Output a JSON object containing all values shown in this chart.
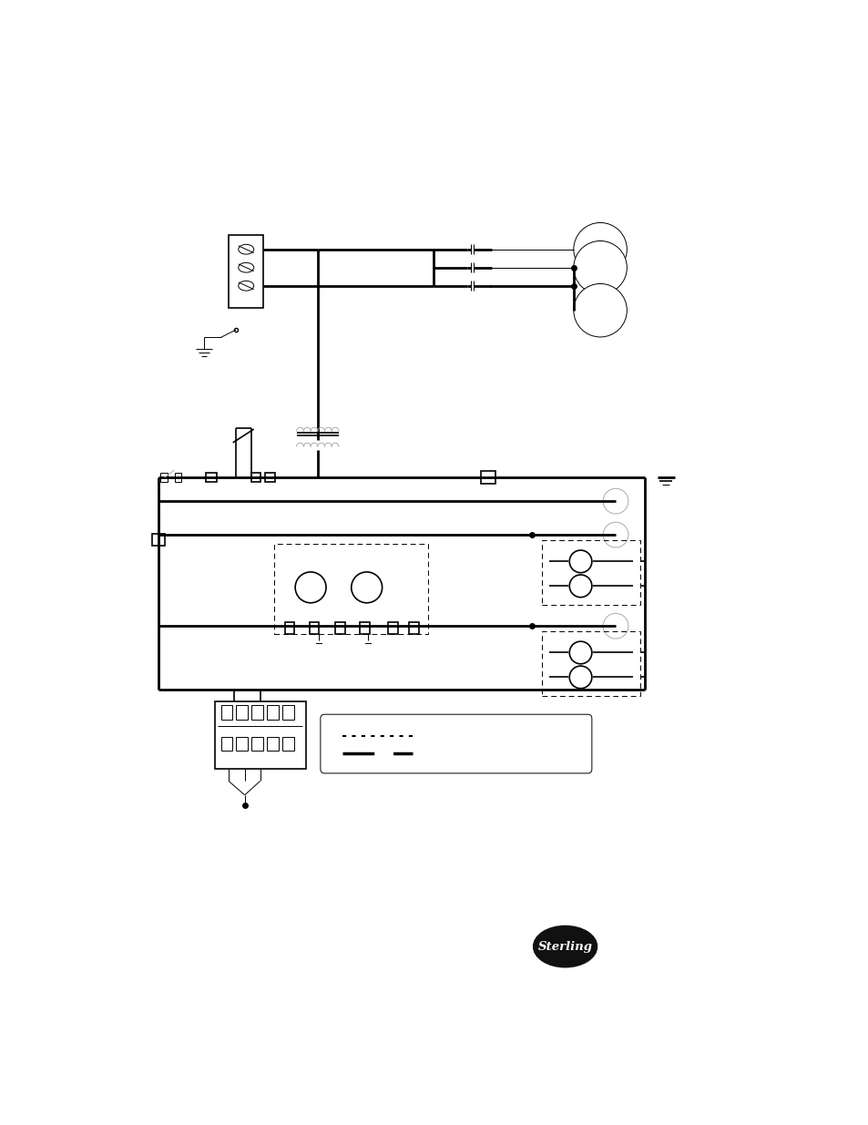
{
  "bg_color": "#ffffff",
  "line_color": "#000000",
  "lw_heavy": 2.0,
  "lw_med": 1.2,
  "lw_thin": 0.7,
  "fig_w": 9.54,
  "fig_h": 12.35,
  "dpi": 100
}
